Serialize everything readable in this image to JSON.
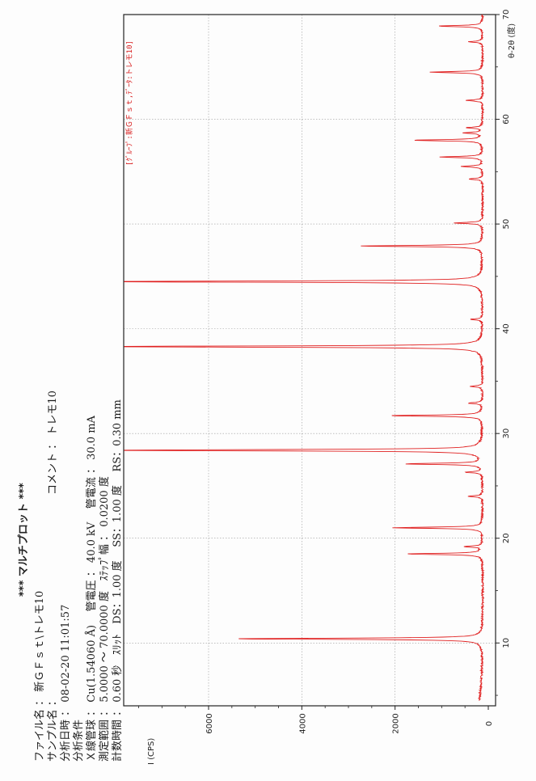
{
  "header": {
    "title": "***    マルチプロット    ***",
    "file_name_label": "ファイル名",
    "file_name_value": "新ＧＦｓｔ\\トレモ10",
    "sample_name_label": "サンプル名",
    "sample_name_value": "",
    "comment_label": "コメント",
    "comment_value": "トレモ10",
    "date_label": "分析日時",
    "date_value": "08-02-20 11:01:57",
    "conditions_label": "分析条件",
    "xray_label": "Ｘ線管球",
    "xray_value": "Cu(1.54060 Å)",
    "voltage_label": "管電圧",
    "voltage_value": "40.0 kV",
    "current_label": "管電流",
    "current_value": "30.0 mA",
    "range_label": "測定範囲",
    "range_value": "5.0000 ～ 70.0000 度",
    "step_label": "ｽﾃｯﾌﾟ幅",
    "step_value": "0.0200 度",
    "count_label": "計数時間",
    "count_value": "0.60 秒",
    "slit_label": "ｽﾘｯﾄ",
    "ds_value": "DS：1.00 度",
    "ss_value": "SS：1.00 度",
    "rs_value": "RS：0.30 mm"
  },
  "colors": {
    "trace": "#e02020",
    "grid": "#9a9a9a",
    "frame": "#222222",
    "note": "#d81b1b"
  },
  "chart_data": {
    "type": "line",
    "title": "",
    "xlabel": "θ-2θ (度)",
    "ylabel": "I (CPS)",
    "xlim": [
      4,
      70
    ],
    "ylim": [
      0,
      8000
    ],
    "x_ticks": [
      10,
      20,
      30,
      40,
      50,
      60,
      70
    ],
    "y_ticks": [
      0,
      2000,
      4000,
      6000
    ],
    "grid": true,
    "legend_note": "[ｸﾞﾙｰﾌﾟ:新ＧＦｓｔ,ﾃﾞｰﾀ:トレモ10]",
    "baseline_cps": 120,
    "peaks": [
      {
        "two_theta": 10.4,
        "intensity": 5350
      },
      {
        "two_theta": 18.5,
        "intensity": 1650
      },
      {
        "two_theta": 19.2,
        "intensity": 380
      },
      {
        "two_theta": 21.0,
        "intensity": 1950
      },
      {
        "two_theta": 24.0,
        "intensity": 300
      },
      {
        "two_theta": 26.3,
        "intensity": 350
      },
      {
        "two_theta": 27.1,
        "intensity": 1650
      },
      {
        "two_theta": 28.4,
        "intensity": 8500
      },
      {
        "two_theta": 31.7,
        "intensity": 2000
      },
      {
        "two_theta": 32.9,
        "intensity": 300
      },
      {
        "two_theta": 34.5,
        "intensity": 250
      },
      {
        "two_theta": 38.3,
        "intensity": 8500
      },
      {
        "two_theta": 40.9,
        "intensity": 250
      },
      {
        "two_theta": 44.5,
        "intensity": 8500
      },
      {
        "two_theta": 47.9,
        "intensity": 2650
      },
      {
        "two_theta": 50.1,
        "intensity": 600
      },
      {
        "two_theta": 54.3,
        "intensity": 300
      },
      {
        "two_theta": 55.5,
        "intensity": 450
      },
      {
        "two_theta": 56.4,
        "intensity": 900
      },
      {
        "two_theta": 58.0,
        "intensity": 1500
      },
      {
        "two_theta": 58.7,
        "intensity": 400
      },
      {
        "two_theta": 59.2,
        "intensity": 350
      },
      {
        "two_theta": 61.8,
        "intensity": 350
      },
      {
        "two_theta": 64.5,
        "intensity": 1150
      },
      {
        "two_theta": 67.4,
        "intensity": 300
      },
      {
        "two_theta": 68.9,
        "intensity": 950
      }
    ]
  }
}
